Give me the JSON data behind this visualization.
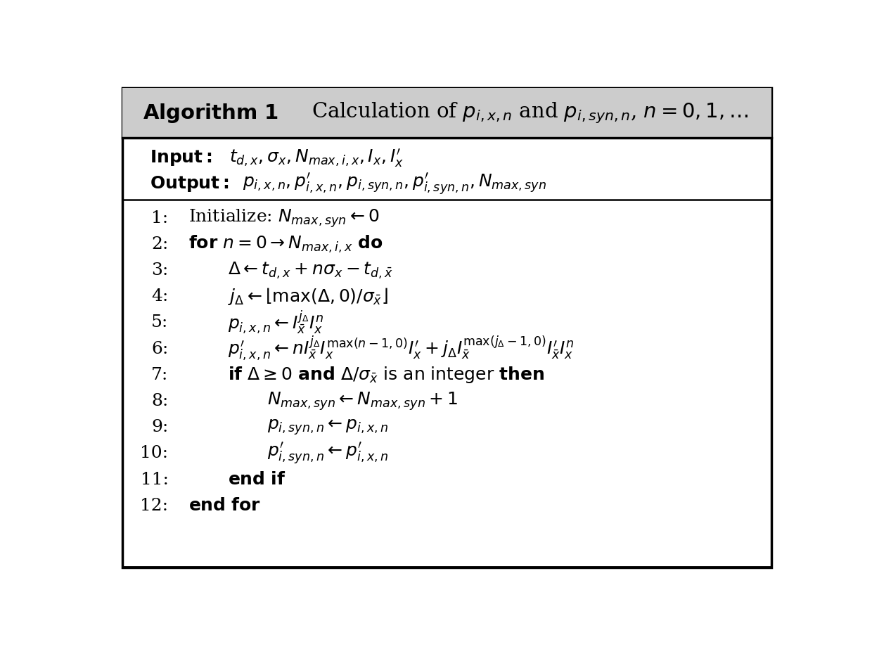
{
  "bg_color": "#ffffff",
  "border_color": "#000000",
  "header_bg": "#cccccc",
  "figsize": [
    12.4,
    9.23
  ],
  "dpi": 100
}
